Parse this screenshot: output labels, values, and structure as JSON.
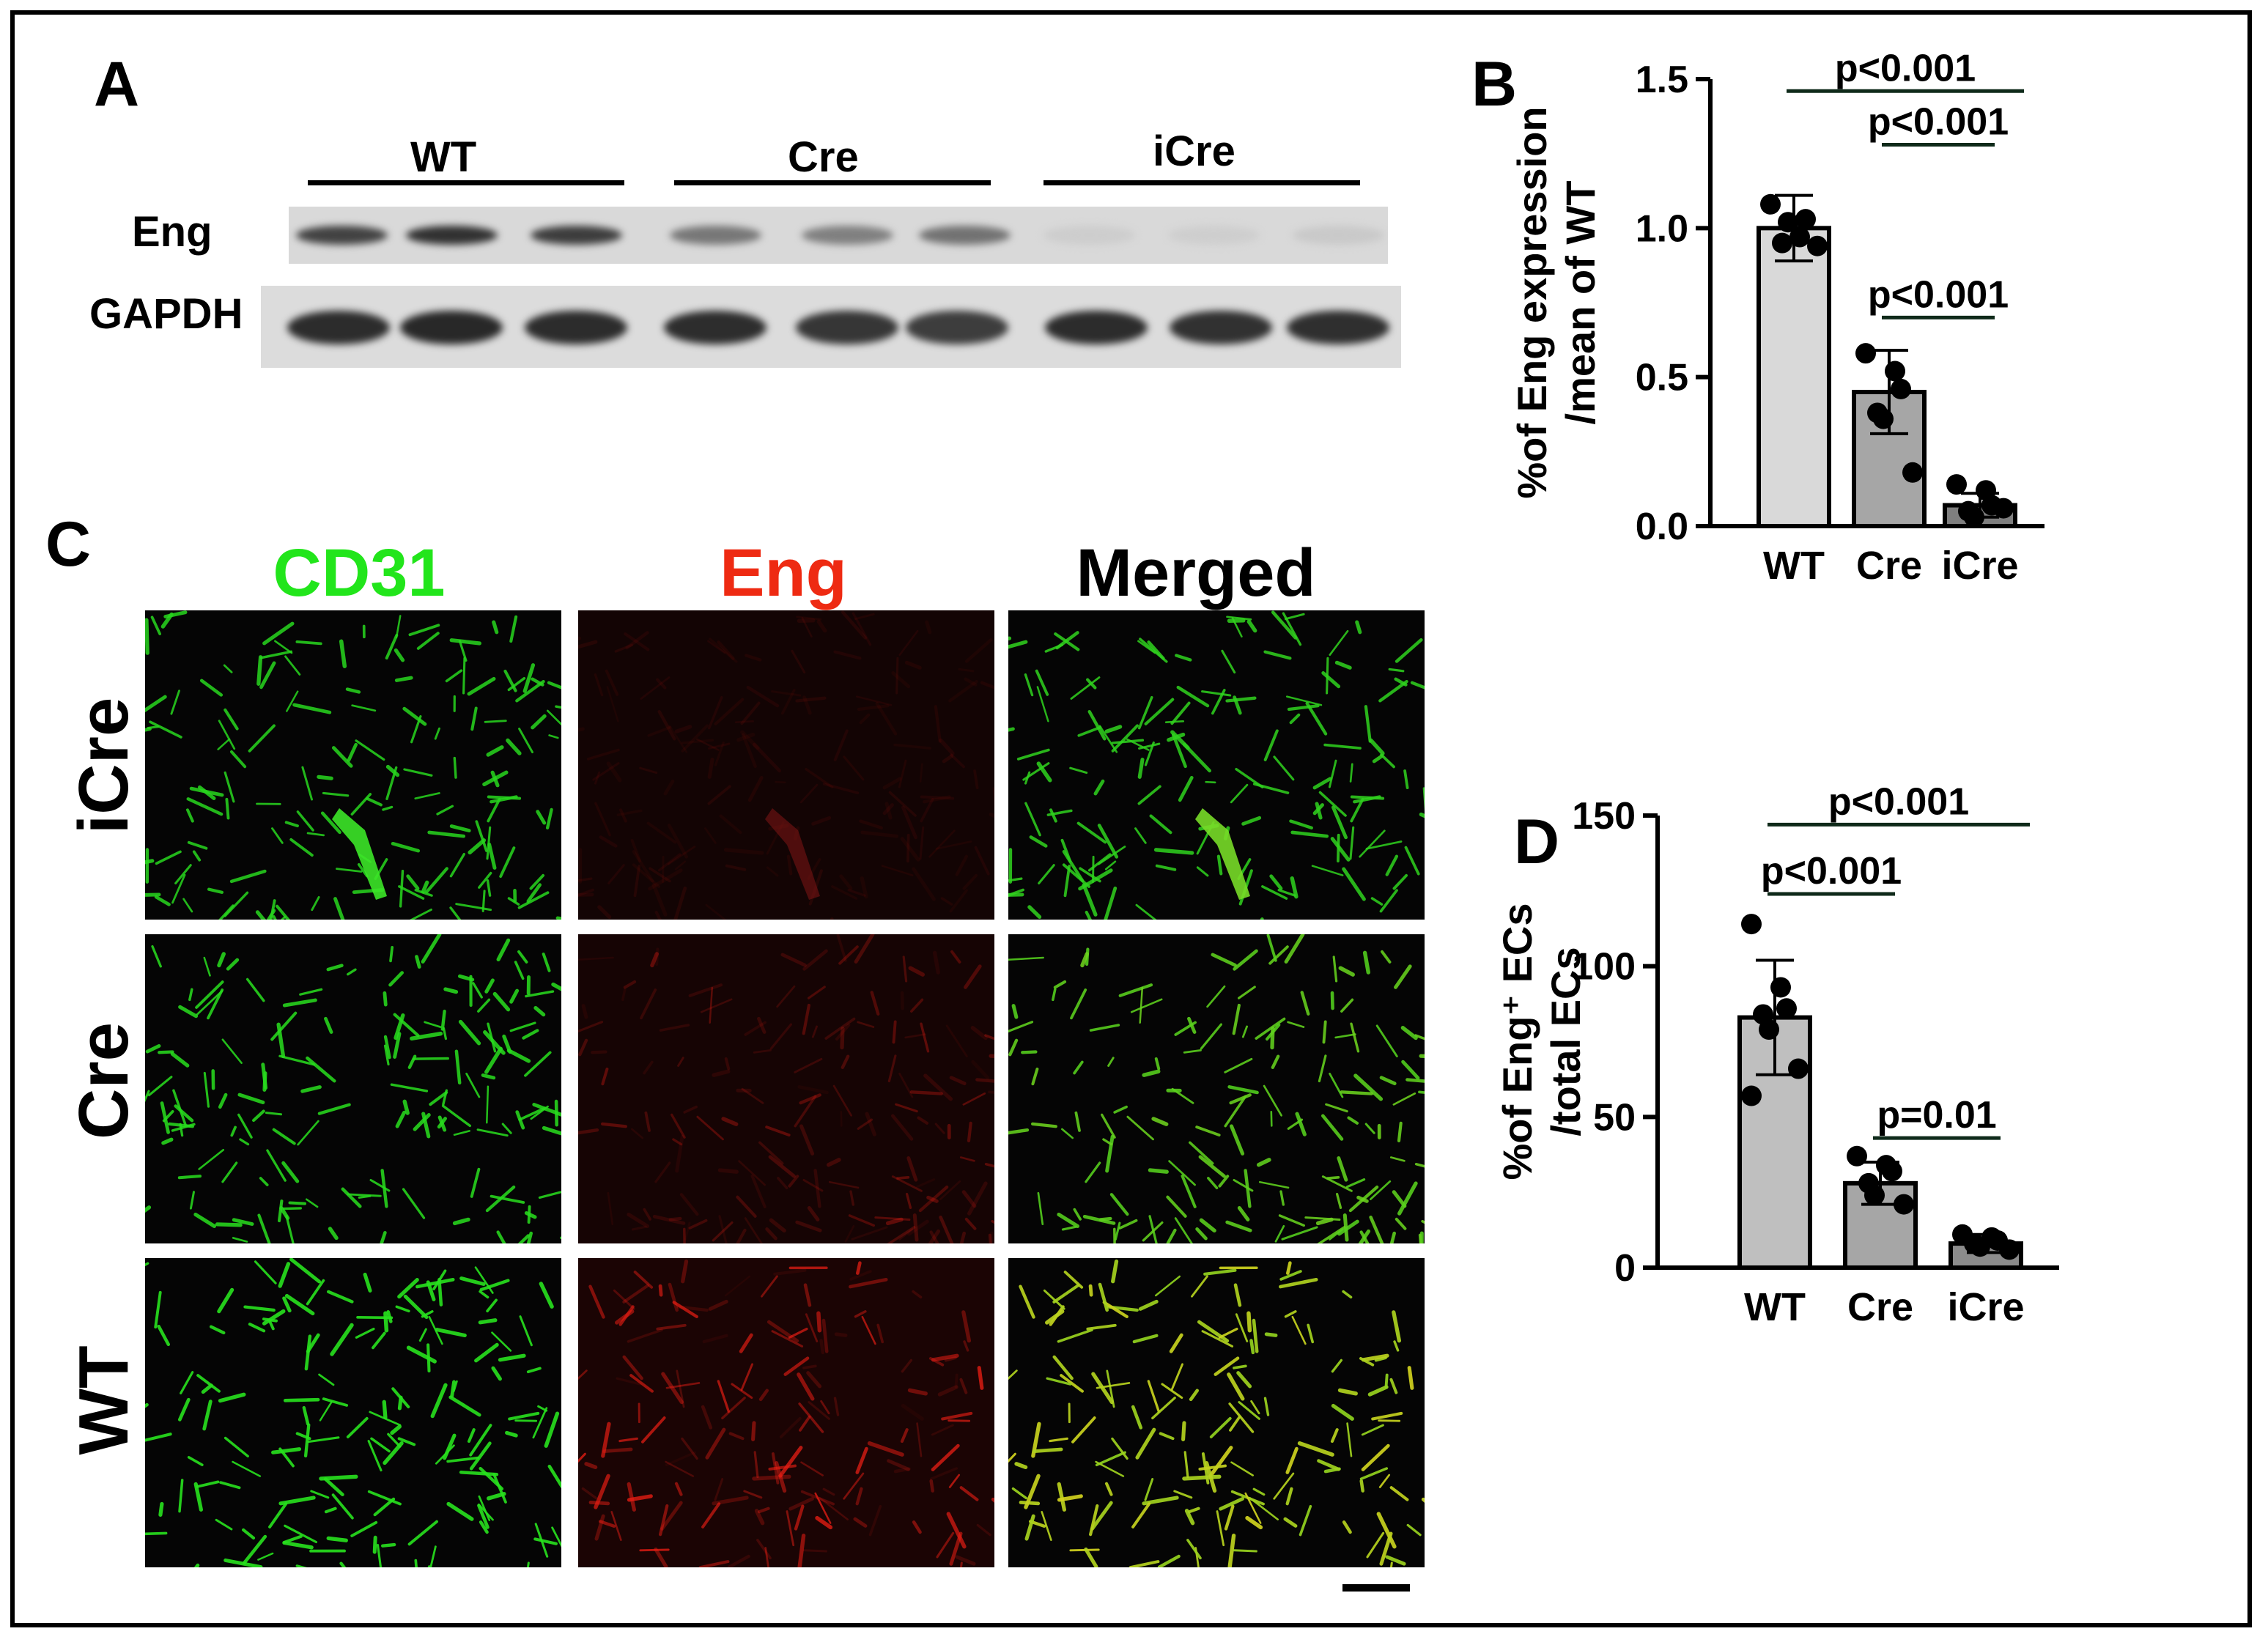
{
  "panels": {
    "a": "A",
    "b": "B",
    "c": "C",
    "d": "D"
  },
  "western_blot": {
    "groups": [
      "WT",
      "Cre",
      "iCre"
    ],
    "rows": [
      "Eng",
      "GAPDH"
    ],
    "band_intensity": {
      "Eng": [
        0.85,
        0.95,
        0.88,
        0.55,
        0.5,
        0.58,
        0.06,
        0.05,
        0.08
      ],
      "GAPDH": [
        0.98,
        1.0,
        0.98,
        0.97,
        0.92,
        0.88,
        0.98,
        0.95,
        0.96
      ]
    },
    "colors": {
      "band": "#1a1a1a",
      "background": "#d9d9d9"
    }
  },
  "microscopy": {
    "columns": [
      {
        "label": "CD31",
        "color": "#22e51b"
      },
      {
        "label": "Eng",
        "color": "#ee2a12"
      },
      {
        "label": "Merged",
        "color": "#000000"
      }
    ],
    "rows": [
      "iCre",
      "Cre",
      "WT"
    ],
    "signal_level": {
      "iCre": {
        "green": 0.75,
        "red": 0.05
      },
      "Cre": {
        "green": 0.8,
        "red": 0.35
      },
      "WT": {
        "green": 0.9,
        "red": 0.85
      }
    }
  },
  "chart_data": [
    {
      "type": "bar",
      "panel": "B",
      "categories": [
        "WT",
        "Cre",
        "iCre"
      ],
      "values": [
        1.0,
        0.45,
        0.07
      ],
      "error": [
        0.11,
        0.14,
        0.04
      ],
      "points": [
        [
          1.08,
          0.97,
          1.03,
          0.95,
          1.02,
          0.94
        ],
        [
          0.58,
          0.52,
          0.46,
          0.38,
          0.36,
          0.18
        ],
        [
          0.14,
          0.12,
          0.07,
          0.05,
          0.03,
          0.06
        ]
      ],
      "ylabel": [
        "%of Eng expression",
        "/mean of WT"
      ],
      "ylim": [
        0,
        1.5
      ],
      "yticks": [
        "0.0",
        "0.5",
        "1.0",
        "1.5"
      ],
      "yticks_values": [
        0,
        0.5,
        1.0,
        1.5
      ],
      "bar_colors": [
        "#d9d9d9",
        "#a6a6a6",
        "#7f7f7f"
      ],
      "brackets": [
        {
          "from": 0,
          "to": 2,
          "label": "p<0.001",
          "y": 1.46
        },
        {
          "from": 1,
          "to": 2,
          "label": "p<0.001",
          "y": 1.28
        },
        {
          "from": 1,
          "to": 2,
          "label": "p<0.001",
          "y": 0.7
        }
      ]
    },
    {
      "type": "bar",
      "panel": "D",
      "categories": [
        "WT",
        "Cre",
        "iCre"
      ],
      "values": [
        83,
        28,
        8
      ],
      "error": [
        19,
        7,
        3
      ],
      "points": [
        [
          114,
          93,
          86,
          84,
          79,
          66,
          57
        ],
        [
          37,
          34,
          32,
          28,
          24,
          21
        ],
        [
          11,
          10,
          9,
          8,
          7,
          6
        ]
      ],
      "ylabel": [
        "%of Eng⁺ ECs",
        "/total ECs"
      ],
      "ylim": [
        0,
        150
      ],
      "yticks": [
        "0",
        "50",
        "100",
        "150"
      ],
      "yticks_values": [
        0,
        50,
        100,
        150
      ],
      "bar_colors": [
        "#bfbfbf",
        "#a6a6a6",
        "#8c8c8c"
      ],
      "brackets": [
        {
          "from": 0,
          "to": 2,
          "label": "p<0.001",
          "y": 147
        },
        {
          "from": 0,
          "to": 1,
          "label": "p<0.001",
          "y": 124
        },
        {
          "from": 1,
          "to": 2,
          "label": "p=0.01",
          "y": 43
        }
      ]
    }
  ]
}
